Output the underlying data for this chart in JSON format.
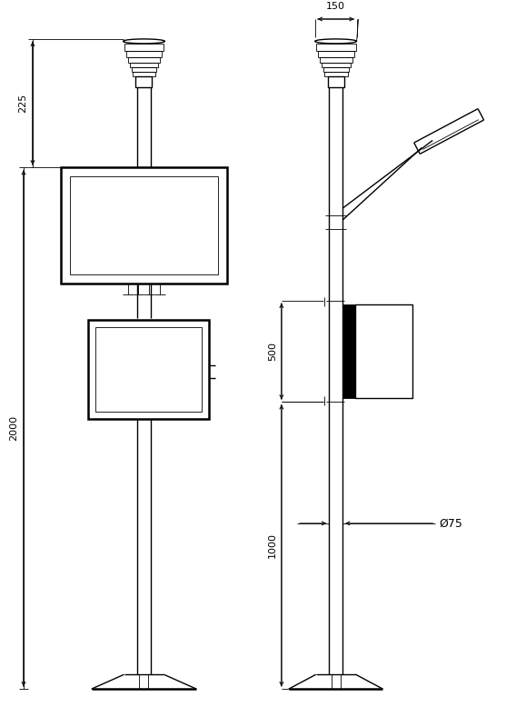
{
  "bg_color": "#ffffff",
  "line_color": "#000000",
  "lw_main": 1.0,
  "lw_thin": 0.6,
  "lw_thick": 1.8,
  "fig_width": 5.57,
  "fig_height": 8.0,
  "dpi": 100,
  "annotations": {
    "dim_225": "225",
    "dim_2000": "2000",
    "dim_500": "500",
    "dim_1000": "1000",
    "dim_150": "150",
    "dim_phi75": "Ø75"
  }
}
